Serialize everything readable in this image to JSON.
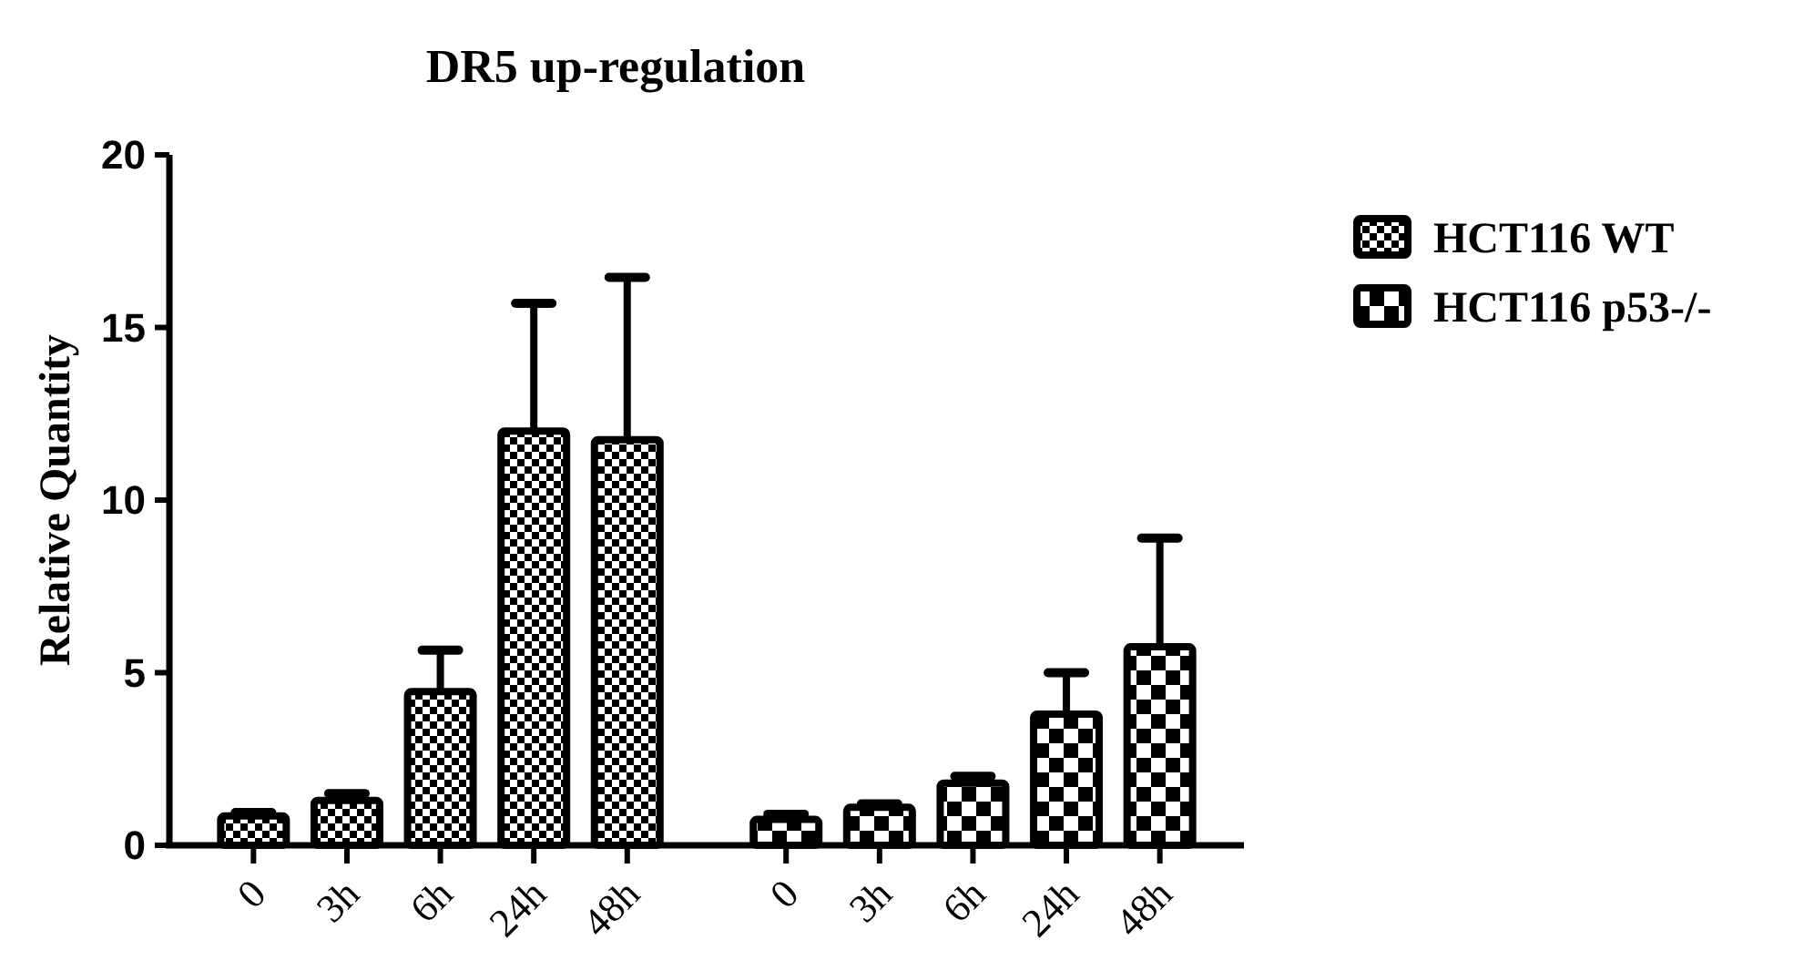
{
  "chart_data": {
    "type": "bar",
    "title": "DR5 up-regulation",
    "ylabel": "Relative Quantity",
    "categories": [
      "0",
      "3h",
      "6h",
      "24h",
      "48h",
      "0",
      "3h",
      "6h",
      "24h",
      "48h"
    ],
    "series": [
      {
        "name": "HCT116 WT",
        "color": "#000000",
        "values": [
          0.85,
          1.3,
          4.45,
          12.0,
          11.75,
          null,
          null,
          null,
          null,
          null
        ],
        "errors": [
          [
            0.85,
            0.95
          ],
          [
            1.3,
            1.5
          ],
          [
            4.45,
            5.65
          ],
          [
            12.0,
            15.7
          ],
          [
            11.75,
            16.45
          ],
          null,
          null,
          null,
          null,
          null
        ]
      },
      {
        "name": "HCT116 p53-/-",
        "color": "#000000",
        "values": [
          null,
          null,
          null,
          null,
          null,
          0.75,
          1.1,
          1.8,
          3.8,
          5.75
        ],
        "errors": [
          null,
          null,
          null,
          null,
          null,
          [
            0.75,
            0.9
          ],
          [
            1.1,
            1.2
          ],
          [
            1.8,
            2.0
          ],
          [
            3.8,
            5.0
          ],
          [
            5.75,
            8.9
          ]
        ]
      }
    ],
    "ylim": [
      0,
      20
    ],
    "yticks": [
      0,
      5,
      10,
      15,
      20
    ],
    "grid": false,
    "legend": "top right"
  }
}
